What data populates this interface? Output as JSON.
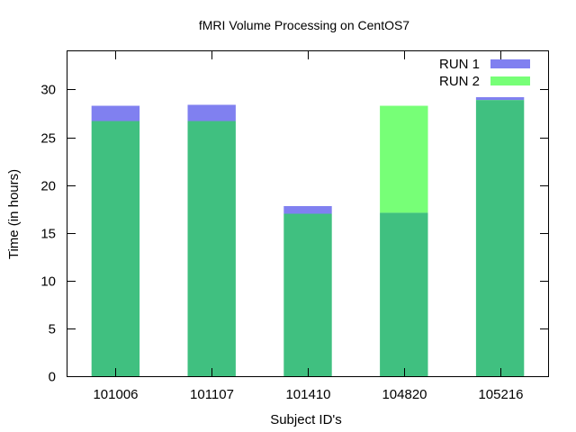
{
  "chart_data": {
    "type": "bar",
    "title": "fMRI Volume Processing on CentOS7",
    "xlabel": "Subject ID's",
    "ylabel": "Time (in hours)",
    "categories": [
      "101006",
      "101107",
      "101410",
      "104820",
      "105216"
    ],
    "series": [
      {
        "name": "RUN 1",
        "values": [
          28.3,
          28.4,
          17.8,
          17.1,
          29.2
        ],
        "color": "#8080f0"
      },
      {
        "name": "RUN 2",
        "values": [
          26.7,
          26.7,
          17.0,
          28.3,
          28.9
        ],
        "color": "#77ff77"
      }
    ],
    "overlap_color": "#40c080",
    "ylim": [
      0,
      34
    ],
    "yticks": [
      0,
      5,
      10,
      15,
      20,
      25,
      30
    ],
    "grid": false,
    "legend_position": "top-right"
  }
}
